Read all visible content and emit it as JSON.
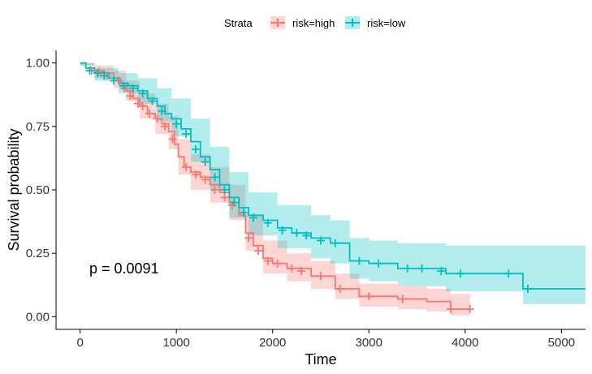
{
  "chart_data": {
    "type": "line",
    "title": "",
    "xlabel": "Time",
    "ylabel": "Survival probability",
    "xlim": [
      -250,
      5250
    ],
    "ylim": [
      -0.05,
      1.05
    ],
    "xticks": [
      0,
      1000,
      2000,
      3000,
      4000,
      5000
    ],
    "yticks": [
      0.0,
      0.25,
      0.5,
      0.75,
      1.0
    ],
    "xtick_labels": [
      "0",
      "1000",
      "2000",
      "3000",
      "4000",
      "5000"
    ],
    "ytick_labels": [
      "0.00",
      "0.25",
      "0.50",
      "0.75",
      "1.00"
    ],
    "legend": {
      "title": "Strata",
      "position": "top",
      "entries": [
        "risk=high",
        "risk=low"
      ]
    },
    "annotation": "p = 0.0091",
    "grid": false,
    "series": [
      {
        "name": "risk=high",
        "color": "#F8766D",
        "fill": "#F8766D",
        "steps": [
          [
            0,
            1.0
          ],
          [
            60,
            0.98
          ],
          [
            150,
            0.97
          ],
          [
            250,
            0.96
          ],
          [
            350,
            0.94
          ],
          [
            420,
            0.92
          ],
          [
            480,
            0.89
          ],
          [
            550,
            0.86
          ],
          [
            620,
            0.83
          ],
          [
            700,
            0.8
          ],
          [
            780,
            0.78
          ],
          [
            850,
            0.76
          ],
          [
            920,
            0.73
          ],
          [
            980,
            0.68
          ],
          [
            1020,
            0.63
          ],
          [
            1080,
            0.59
          ],
          [
            1150,
            0.57
          ],
          [
            1250,
            0.55
          ],
          [
            1350,
            0.52
          ],
          [
            1450,
            0.49
          ],
          [
            1550,
            0.45
          ],
          [
            1650,
            0.4
          ],
          [
            1720,
            0.33
          ],
          [
            1800,
            0.28
          ],
          [
            1900,
            0.23
          ],
          [
            2000,
            0.21
          ],
          [
            2150,
            0.19
          ],
          [
            2400,
            0.16
          ],
          [
            2650,
            0.11
          ],
          [
            2900,
            0.08
          ],
          [
            3300,
            0.07
          ],
          [
            3600,
            0.06
          ],
          [
            3850,
            0.03
          ],
          [
            4050,
            0.03
          ]
        ],
        "upper": [
          [
            0,
            1.0
          ],
          [
            150,
            0.99
          ],
          [
            350,
            0.97
          ],
          [
            480,
            0.93
          ],
          [
            620,
            0.88
          ],
          [
            780,
            0.84
          ],
          [
            920,
            0.79
          ],
          [
            1020,
            0.7
          ],
          [
            1150,
            0.64
          ],
          [
            1350,
            0.59
          ],
          [
            1550,
            0.52
          ],
          [
            1720,
            0.4
          ],
          [
            1900,
            0.3
          ],
          [
            2150,
            0.25
          ],
          [
            2400,
            0.22
          ],
          [
            2650,
            0.17
          ],
          [
            2900,
            0.13
          ],
          [
            3300,
            0.12
          ],
          [
            3600,
            0.11
          ],
          [
            3850,
            0.09
          ],
          [
            4050,
            0.09
          ]
        ],
        "lower": [
          [
            0,
            0.99
          ],
          [
            150,
            0.94
          ],
          [
            350,
            0.9
          ],
          [
            480,
            0.85
          ],
          [
            620,
            0.78
          ],
          [
            780,
            0.72
          ],
          [
            920,
            0.66
          ],
          [
            1020,
            0.56
          ],
          [
            1150,
            0.5
          ],
          [
            1350,
            0.45
          ],
          [
            1550,
            0.38
          ],
          [
            1720,
            0.26
          ],
          [
            1900,
            0.17
          ],
          [
            2150,
            0.14
          ],
          [
            2400,
            0.11
          ],
          [
            2650,
            0.07
          ],
          [
            2900,
            0.04
          ],
          [
            3300,
            0.03
          ],
          [
            3600,
            0.02
          ],
          [
            3850,
            0.005
          ],
          [
            4050,
            0.005
          ]
        ],
        "censored": [
          [
            120,
            0.97
          ],
          [
            200,
            0.965
          ],
          [
            280,
            0.95
          ],
          [
            400,
            0.93
          ],
          [
            460,
            0.9
          ],
          [
            520,
            0.87
          ],
          [
            600,
            0.84
          ],
          [
            650,
            0.83
          ],
          [
            720,
            0.8
          ],
          [
            800,
            0.78
          ],
          [
            880,
            0.75
          ],
          [
            960,
            0.7
          ],
          [
            1100,
            0.59
          ],
          [
            1200,
            0.56
          ],
          [
            1300,
            0.54
          ],
          [
            1400,
            0.5
          ],
          [
            1500,
            0.47
          ],
          [
            1580,
            0.44
          ],
          [
            1750,
            0.31
          ],
          [
            1850,
            0.26
          ],
          [
            1950,
            0.22
          ],
          [
            2050,
            0.21
          ],
          [
            2200,
            0.19
          ],
          [
            2300,
            0.18
          ],
          [
            2500,
            0.16
          ],
          [
            2700,
            0.11
          ],
          [
            3000,
            0.08
          ],
          [
            3350,
            0.07
          ],
          [
            3850,
            0.03
          ],
          [
            4050,
            0.03
          ]
        ]
      },
      {
        "name": "risk=low",
        "color": "#00BFC4",
        "fill": "#00BFC4",
        "steps": [
          [
            0,
            1.0
          ],
          [
            60,
            0.98
          ],
          [
            150,
            0.96
          ],
          [
            300,
            0.94
          ],
          [
            400,
            0.92
          ],
          [
            500,
            0.91
          ],
          [
            600,
            0.89
          ],
          [
            700,
            0.86
          ],
          [
            800,
            0.83
          ],
          [
            880,
            0.8
          ],
          [
            950,
            0.78
          ],
          [
            1050,
            0.74
          ],
          [
            1150,
            0.69
          ],
          [
            1250,
            0.63
          ],
          [
            1350,
            0.58
          ],
          [
            1450,
            0.52
          ],
          [
            1550,
            0.47
          ],
          [
            1650,
            0.43
          ],
          [
            1750,
            0.4
          ],
          [
            1900,
            0.38
          ],
          [
            2050,
            0.35
          ],
          [
            2200,
            0.33
          ],
          [
            2400,
            0.31
          ],
          [
            2600,
            0.29
          ],
          [
            2800,
            0.22
          ],
          [
            3000,
            0.21
          ],
          [
            3300,
            0.19
          ],
          [
            3800,
            0.17
          ],
          [
            4600,
            0.11
          ],
          [
            5250,
            0.11
          ]
        ],
        "upper": [
          [
            0,
            1.0
          ],
          [
            150,
            0.98
          ],
          [
            400,
            0.96
          ],
          [
            600,
            0.94
          ],
          [
            800,
            0.9
          ],
          [
            950,
            0.86
          ],
          [
            1150,
            0.78
          ],
          [
            1350,
            0.67
          ],
          [
            1550,
            0.57
          ],
          [
            1750,
            0.49
          ],
          [
            2050,
            0.44
          ],
          [
            2400,
            0.4
          ],
          [
            2600,
            0.38
          ],
          [
            2800,
            0.31
          ],
          [
            3000,
            0.3
          ],
          [
            3300,
            0.29
          ],
          [
            3800,
            0.28
          ],
          [
            4600,
            0.28
          ],
          [
            5250,
            0.28
          ]
        ],
        "lower": [
          [
            0,
            0.99
          ],
          [
            150,
            0.93
          ],
          [
            400,
            0.88
          ],
          [
            600,
            0.84
          ],
          [
            800,
            0.77
          ],
          [
            950,
            0.71
          ],
          [
            1150,
            0.61
          ],
          [
            1350,
            0.5
          ],
          [
            1550,
            0.39
          ],
          [
            1750,
            0.32
          ],
          [
            2050,
            0.27
          ],
          [
            2400,
            0.23
          ],
          [
            2600,
            0.21
          ],
          [
            2800,
            0.15
          ],
          [
            3000,
            0.14
          ],
          [
            3300,
            0.12
          ],
          [
            3800,
            0.1
          ],
          [
            4600,
            0.05
          ],
          [
            5250,
            0.05
          ]
        ],
        "censored": [
          [
            100,
            0.97
          ],
          [
            180,
            0.96
          ],
          [
            250,
            0.95
          ],
          [
            350,
            0.93
          ],
          [
            450,
            0.91
          ],
          [
            550,
            0.9
          ],
          [
            650,
            0.88
          ],
          [
            750,
            0.85
          ],
          [
            850,
            0.81
          ],
          [
            1000,
            0.76
          ],
          [
            1100,
            0.72
          ],
          [
            1200,
            0.66
          ],
          [
            1300,
            0.61
          ],
          [
            1400,
            0.55
          ],
          [
            1500,
            0.5
          ],
          [
            1600,
            0.45
          ],
          [
            1700,
            0.41
          ],
          [
            1800,
            0.39
          ],
          [
            1950,
            0.37
          ],
          [
            2100,
            0.34
          ],
          [
            2250,
            0.33
          ],
          [
            2350,
            0.32
          ],
          [
            2500,
            0.3
          ],
          [
            2650,
            0.29
          ],
          [
            2900,
            0.22
          ],
          [
            3100,
            0.21
          ],
          [
            3400,
            0.19
          ],
          [
            3550,
            0.19
          ],
          [
            3750,
            0.18
          ],
          [
            3950,
            0.17
          ],
          [
            4450,
            0.17
          ],
          [
            4650,
            0.11
          ]
        ]
      }
    ]
  }
}
